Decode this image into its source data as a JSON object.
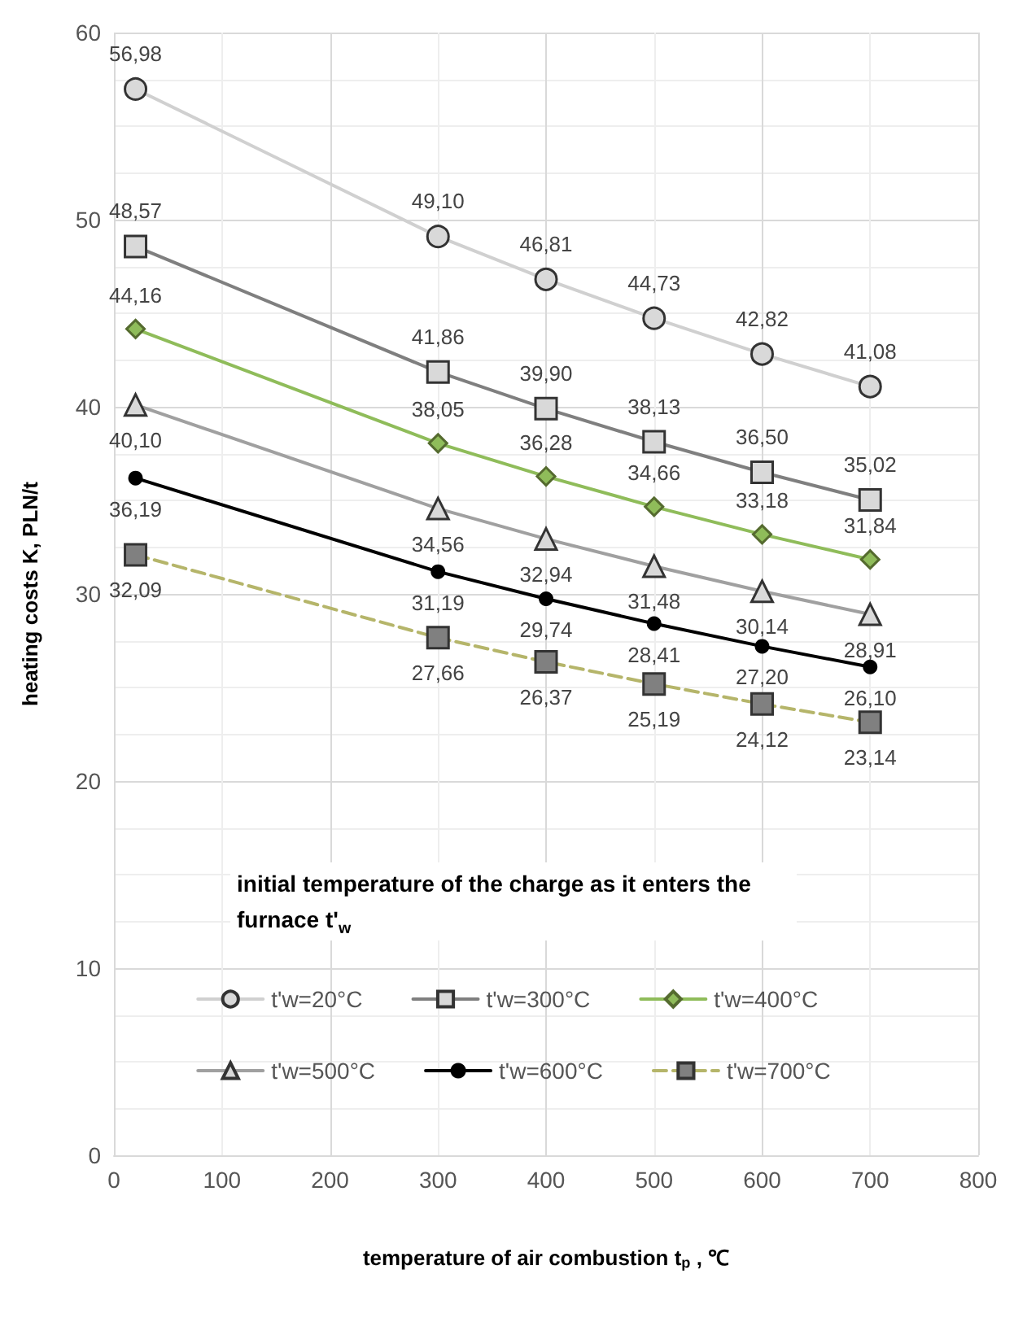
{
  "chart_data": {
    "type": "line",
    "xlabel": "temperature of air combustion t$_{p}$ , ℃",
    "ylabel": "heating costs K, PLN/t",
    "legend_title": "initial temperature of the charge as it enters the furnace t'$_{w}$",
    "x": [
      20,
      300,
      400,
      500,
      600,
      700
    ],
    "xlim": [
      0,
      800
    ],
    "xticks": [
      0,
      100,
      200,
      300,
      400,
      500,
      600,
      700,
      800
    ],
    "ylim": [
      0,
      60
    ],
    "yticks": [
      0,
      10,
      20,
      30,
      40,
      50,
      60
    ],
    "grid": true,
    "legend": "bottom",
    "series": [
      {
        "name": "t'w=20°C",
        "color": "#d0d0d0",
        "marker": "circle",
        "line_style": "solid",
        "values": [
          56.98,
          49.1,
          46.81,
          44.73,
          42.82,
          41.08
        ],
        "value_labels": [
          "56,98",
          "49,10",
          "46,81",
          "44,73",
          "42,82",
          "41,08"
        ]
      },
      {
        "name": "t'w=300°C",
        "color": "#7f7f7f",
        "marker": "square",
        "line_style": "solid",
        "values": [
          48.57,
          41.86,
          39.9,
          38.13,
          36.5,
          35.02
        ],
        "value_labels": [
          "48,57",
          "41,86",
          "39,90",
          "38,13",
          "36,50",
          "35,02"
        ]
      },
      {
        "name": "t'w=400°C",
        "color": "#8fbc5a",
        "marker": "diamond",
        "line_style": "solid",
        "values": [
          44.16,
          38.05,
          36.28,
          34.66,
          33.18,
          31.84
        ],
        "value_labels": [
          "44,16",
          "38,05",
          "36,28",
          "34,66",
          "33,18",
          "31,84"
        ]
      },
      {
        "name": "t'w=500°C",
        "color": "#a0a0a0",
        "marker": "triangle",
        "line_style": "solid",
        "values": [
          40.1,
          34.56,
          32.94,
          31.48,
          30.14,
          28.91
        ],
        "value_labels": [
          "40,10",
          "34,56",
          "32,94",
          "31,48",
          "30,14",
          "28,91"
        ]
      },
      {
        "name": "t'w=600°C",
        "color": "#000000",
        "marker": "circle",
        "line_style": "solid",
        "values": [
          36.19,
          31.19,
          29.74,
          28.41,
          27.2,
          26.1
        ],
        "value_labels": [
          "36,19",
          "31,19",
          "29,74",
          "28,41",
          "27,20",
          "26,10"
        ]
      },
      {
        "name": "t'w=700°C",
        "color": "#b5b56a",
        "marker": "square",
        "line_style": "dashed",
        "values": [
          32.09,
          27.66,
          26.37,
          25.19,
          24.12,
          23.14
        ],
        "value_labels": [
          "32,09",
          "27,66",
          "26,37",
          "25,19",
          "24,12",
          "23,14"
        ]
      }
    ]
  }
}
